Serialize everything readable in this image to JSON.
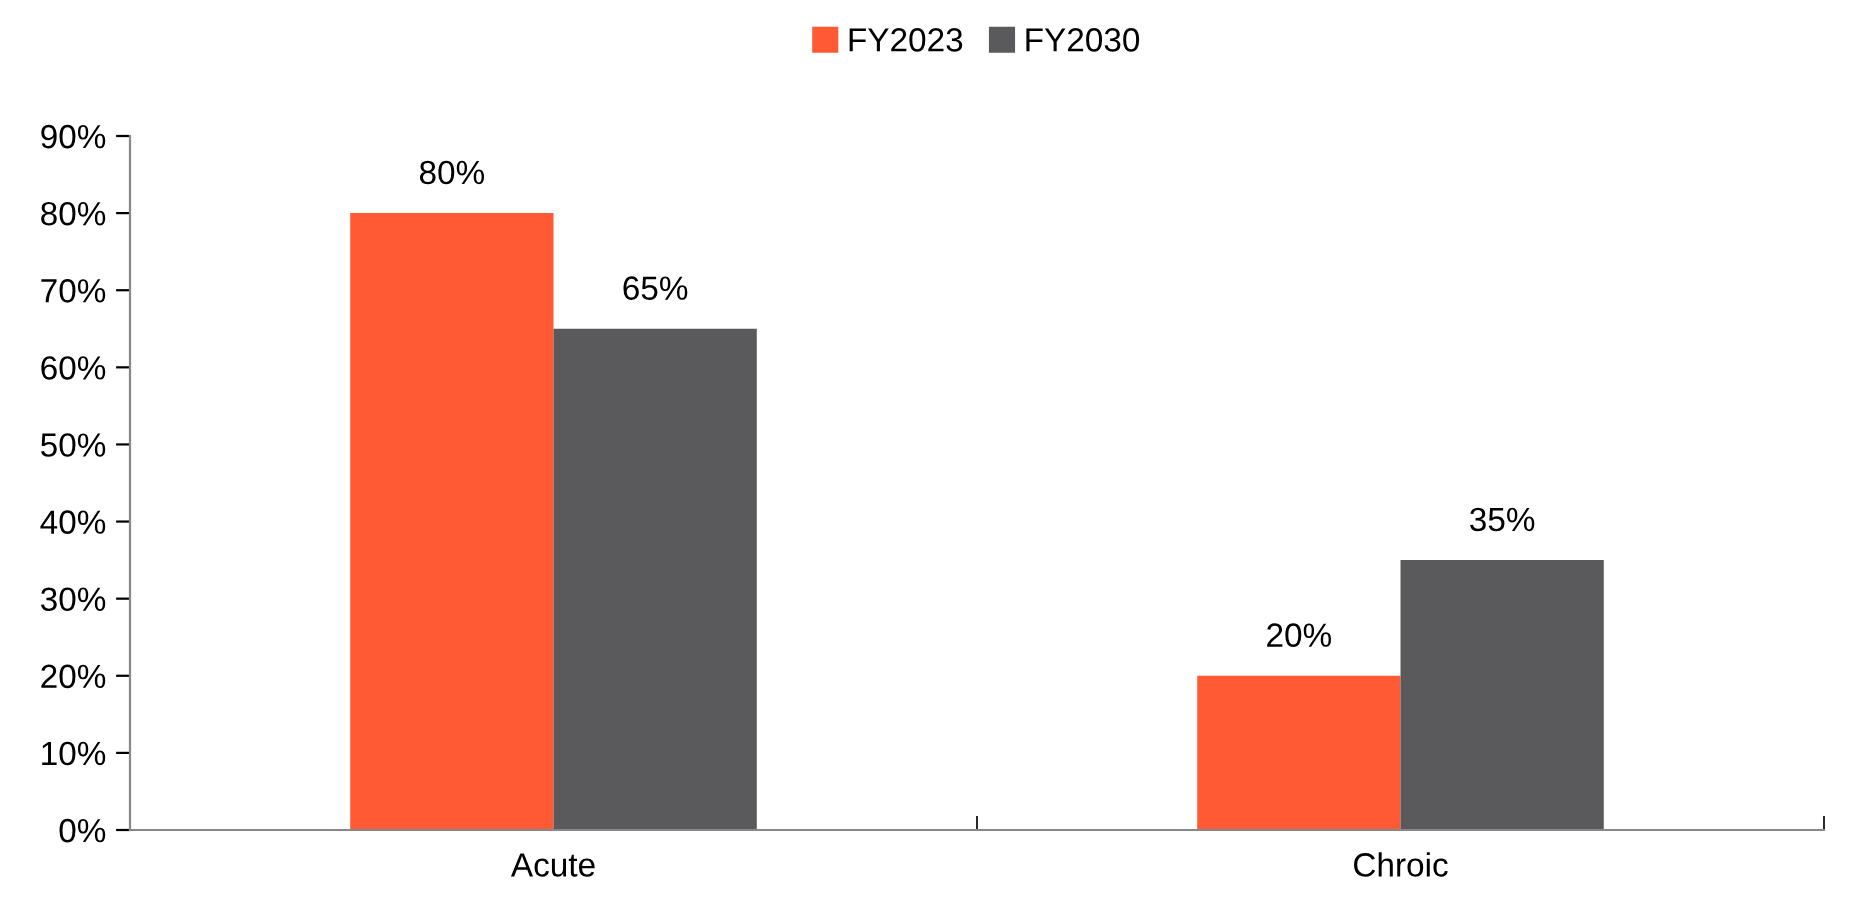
{
  "chart_data": {
    "type": "bar",
    "categories": [
      "Acute",
      "Chroic"
    ],
    "series": [
      {
        "name": "FY2023",
        "color": "#ff5a33",
        "values": [
          80,
          20
        ],
        "value_labels": [
          "80%",
          "20%"
        ]
      },
      {
        "name": "FY2030",
        "color": "#5a5a5c",
        "values": [
          65,
          35
        ],
        "value_labels": [
          "65%",
          "35%"
        ]
      }
    ],
    "ylim": [
      0,
      90
    ],
    "yticks": [
      {
        "value": 0,
        "label": "0%"
      },
      {
        "value": 10,
        "label": "10%"
      },
      {
        "value": 20,
        "label": "20%"
      },
      {
        "value": 30,
        "label": "30%"
      },
      {
        "value": 40,
        "label": "40%"
      },
      {
        "value": 50,
        "label": "50%"
      },
      {
        "value": 60,
        "label": "60%"
      },
      {
        "value": 70,
        "label": "70%"
      },
      {
        "value": 80,
        "label": "80%"
      },
      {
        "value": 90,
        "label": "90%"
      }
    ],
    "grid": false,
    "legend": "top"
  }
}
